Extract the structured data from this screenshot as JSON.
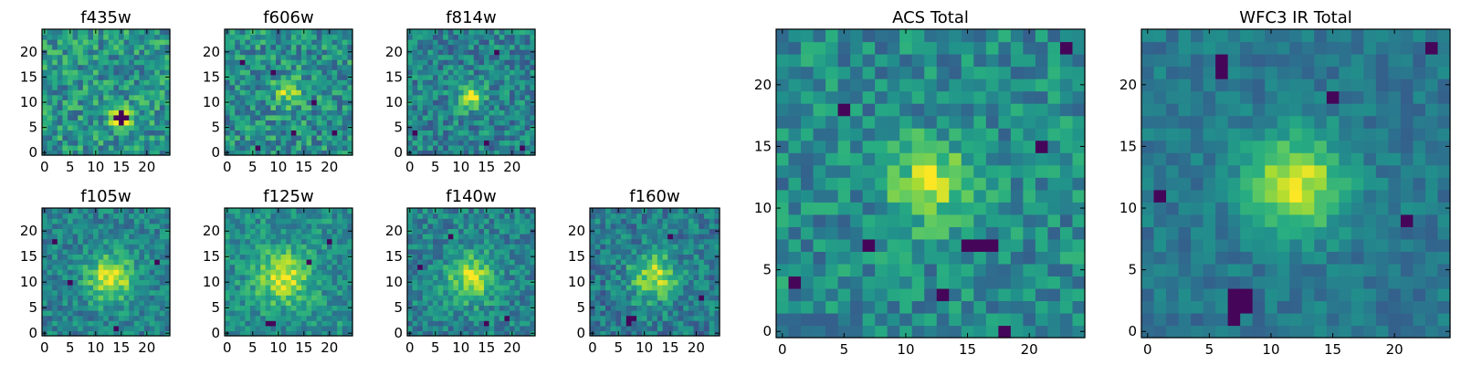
{
  "figure": {
    "description_free": true
  },
  "chart_data": [
    {
      "type": "heatmap",
      "title": "f435w",
      "grid": [
        25,
        25
      ],
      "center": [
        15,
        7
      ],
      "peak": 0.55,
      "sigma": 1.5,
      "noise": 0.22,
      "base": 0.52,
      "seed": 11,
      "dark_pixels": [
        [
          15,
          7
        ],
        [
          14,
          7
        ],
        [
          16,
          7
        ],
        [
          15,
          6
        ],
        [
          15,
          8
        ]
      ],
      "xticks": [
        0,
        5,
        10,
        15,
        20
      ],
      "yticks": [
        0,
        5,
        10,
        15,
        20
      ],
      "xlim": [
        0,
        25
      ],
      "ylim": [
        0,
        25
      ]
    },
    {
      "type": "heatmap",
      "title": "f606w",
      "grid": [
        25,
        25
      ],
      "center": [
        12,
        12
      ],
      "peak": 0.35,
      "sigma": 2.0,
      "noise": 0.22,
      "base": 0.5,
      "seed": 23,
      "dark_pixels": [
        [
          3,
          18
        ],
        [
          9,
          16
        ],
        [
          17,
          10
        ],
        [
          21,
          4
        ],
        [
          6,
          1
        ],
        [
          13,
          4
        ]
      ],
      "xticks": [
        0,
        5,
        10,
        15,
        20
      ],
      "yticks": [
        0,
        5,
        10,
        15,
        20
      ],
      "xlim": [
        0,
        25
      ],
      "ylim": [
        0,
        25
      ]
    },
    {
      "type": "heatmap",
      "title": "f814w",
      "grid": [
        25,
        25
      ],
      "center": [
        12,
        11
      ],
      "peak": 0.5,
      "sigma": 1.7,
      "noise": 0.2,
      "base": 0.45,
      "seed": 37,
      "dark_pixels": [
        [
          17,
          20
        ],
        [
          15,
          2
        ],
        [
          1,
          4
        ],
        [
          22,
          1
        ]
      ],
      "xticks": [
        0,
        5,
        10,
        15,
        20
      ],
      "yticks": [
        0,
        5,
        10,
        15,
        20
      ],
      "xlim": [
        0,
        25
      ],
      "ylim": [
        0,
        25
      ]
    },
    {
      "type": "heatmap",
      "title": "f105w",
      "grid": [
        25,
        25
      ],
      "center": [
        13,
        11
      ],
      "peak": 0.5,
      "sigma": 3.2,
      "noise": 0.16,
      "base": 0.45,
      "seed": 41,
      "dark_pixels": [
        [
          5,
          10
        ],
        [
          2,
          18
        ],
        [
          14,
          1
        ],
        [
          22,
          14
        ]
      ],
      "xticks": [
        0,
        5,
        10,
        15,
        20
      ],
      "yticks": [
        0,
        5,
        10,
        15,
        20
      ],
      "xlim": [
        0,
        25
      ],
      "ylim": [
        0,
        25
      ]
    },
    {
      "type": "heatmap",
      "title": "f125w",
      "grid": [
        25,
        25
      ],
      "center": [
        11,
        11
      ],
      "peak": 0.45,
      "sigma": 3.5,
      "noise": 0.16,
      "base": 0.5,
      "seed": 53,
      "dark_pixels": [
        [
          8,
          2
        ],
        [
          9,
          2
        ],
        [
          16,
          14
        ],
        [
          20,
          18
        ]
      ],
      "xticks": [
        0,
        5,
        10,
        15,
        20
      ],
      "yticks": [
        0,
        5,
        10,
        15,
        20
      ],
      "xlim": [
        0,
        25
      ],
      "ylim": [
        0,
        25
      ]
    },
    {
      "type": "heatmap",
      "title": "f140w",
      "grid": [
        25,
        25
      ],
      "center": [
        12,
        11
      ],
      "peak": 0.45,
      "sigma": 3.2,
      "noise": 0.17,
      "base": 0.45,
      "seed": 67,
      "dark_pixels": [
        [
          2,
          13
        ],
        [
          19,
          3
        ],
        [
          15,
          2
        ],
        [
          8,
          19
        ]
      ],
      "xticks": [
        0,
        5,
        10,
        15,
        20
      ],
      "yticks": [
        0,
        5,
        10,
        15,
        20
      ],
      "xlim": [
        0,
        25
      ],
      "ylim": [
        0,
        25
      ]
    },
    {
      "type": "heatmap",
      "title": "f160w",
      "grid": [
        25,
        25
      ],
      "center": [
        12,
        11
      ],
      "peak": 0.45,
      "sigma": 3.2,
      "noise": 0.18,
      "base": 0.42,
      "seed": 79,
      "dark_pixels": [
        [
          7,
          3
        ],
        [
          8,
          3
        ],
        [
          7,
          2
        ],
        [
          15,
          19
        ],
        [
          21,
          7
        ]
      ],
      "xticks": [
        0,
        5,
        10,
        15,
        20
      ],
      "yticks": [
        0,
        5,
        10,
        15,
        20
      ],
      "xlim": [
        0,
        25
      ],
      "ylim": [
        0,
        25
      ]
    },
    {
      "type": "heatmap",
      "title": "ACS Total",
      "grid": [
        25,
        25
      ],
      "center": [
        12,
        12
      ],
      "peak": 0.45,
      "sigma": 2.2,
      "noise": 0.18,
      "base": 0.48,
      "seed": 97,
      "dark_pixels": [
        [
          15,
          7
        ],
        [
          16,
          7
        ],
        [
          17,
          7
        ],
        [
          7,
          7
        ],
        [
          18,
          0
        ],
        [
          1,
          4
        ],
        [
          5,
          18
        ],
        [
          23,
          23
        ],
        [
          21,
          15
        ],
        [
          13,
          3
        ]
      ],
      "xticks": [
        0,
        5,
        10,
        15,
        20
      ],
      "yticks": [
        0,
        5,
        10,
        15,
        20
      ],
      "xlim": [
        0,
        25
      ],
      "ylim": [
        0,
        25
      ]
    },
    {
      "type": "heatmap",
      "title": "WFC3 IR Total",
      "grid": [
        25,
        25
      ],
      "center": [
        12,
        12
      ],
      "peak": 0.55,
      "sigma": 2.8,
      "noise": 0.1,
      "base": 0.4,
      "seed": 131,
      "dark_pixels": [
        [
          6,
          22
        ],
        [
          6,
          21
        ],
        [
          7,
          3
        ],
        [
          8,
          3
        ],
        [
          7,
          2
        ],
        [
          7,
          1
        ],
        [
          8,
          2
        ],
        [
          15,
          19
        ],
        [
          21,
          9
        ],
        [
          23,
          23
        ],
        [
          1,
          11
        ]
      ],
      "xticks": [
        0,
        5,
        10,
        15,
        20
      ],
      "yticks": [
        0,
        5,
        10,
        15,
        20
      ],
      "xlim": [
        0,
        25
      ],
      "ylim": [
        0,
        25
      ]
    }
  ]
}
